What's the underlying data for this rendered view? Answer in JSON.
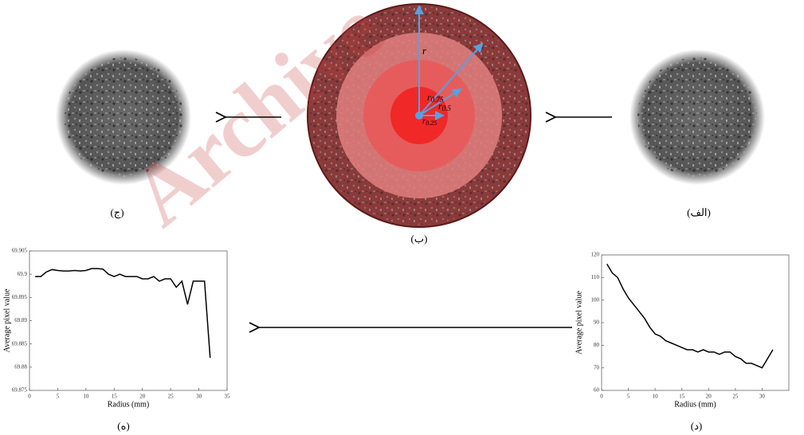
{
  "watermark": "Archive",
  "panels": {
    "alef": "(الف)",
    "be": "(ب)",
    "jim": "(ج)",
    "dal": "(د)",
    "he": "(ه)"
  },
  "center": {
    "symbol": "r",
    "subscripts": [
      "0.75",
      "0.5",
      "0.25"
    ]
  },
  "chart_data": [
    {
      "type": "line",
      "xlabel": "Radius (mm)",
      "ylabel": "Average pixel value",
      "color": "#000000",
      "x": [
        1,
        2,
        3,
        4,
        5,
        6,
        7,
        8,
        9,
        10,
        11,
        12,
        13,
        14,
        15,
        16,
        17,
        18,
        19,
        20,
        21,
        22,
        23,
        24,
        25,
        26,
        27,
        28,
        29,
        30,
        31,
        32
      ],
      "values": [
        69.8995,
        69.8995,
        69.9005,
        69.901,
        69.9008,
        69.9007,
        69.9007,
        69.9008,
        69.9007,
        69.9008,
        69.9012,
        69.9012,
        69.9011,
        69.9,
        69.8995,
        69.9,
        69.8995,
        69.8995,
        69.8995,
        69.899,
        69.899,
        69.8995,
        69.8985,
        69.899,
        69.899,
        69.8972,
        69.8985,
        69.8935,
        69.8985,
        69.8985,
        69.8985,
        69.882
      ],
      "xlim": [
        0,
        35
      ],
      "xticks": [
        0,
        5,
        10,
        15,
        20,
        25,
        30,
        35
      ],
      "ylim": [
        69.875,
        69.905
      ],
      "yticks": [
        69.875,
        69.88,
        69.885,
        69.89,
        69.895,
        69.9,
        69.905
      ]
    },
    {
      "type": "line",
      "xlabel": "Radius (mm)",
      "ylabel": "Average pixel value",
      "color": "#000000",
      "x": [
        1,
        2,
        3,
        4,
        5,
        6,
        7,
        8,
        9,
        10,
        11,
        12,
        13,
        14,
        15,
        16,
        17,
        18,
        19,
        20,
        21,
        22,
        23,
        24,
        25,
        26,
        27,
        28,
        29,
        30,
        31,
        32
      ],
      "values": [
        116,
        112,
        110,
        105,
        101,
        98,
        95,
        92,
        88,
        85,
        84,
        82,
        81,
        80,
        79,
        78,
        78,
        77,
        78,
        77,
        77,
        76,
        77,
        77,
        75,
        74,
        72,
        72,
        71,
        70,
        74,
        78
      ],
      "xlim": [
        0,
        35
      ],
      "xticks": [
        0,
        5,
        10,
        15,
        20,
        25,
        30
      ],
      "ylim": [
        60,
        120
      ],
      "yticks": [
        60,
        70,
        80,
        90,
        100,
        110,
        120
      ]
    }
  ]
}
